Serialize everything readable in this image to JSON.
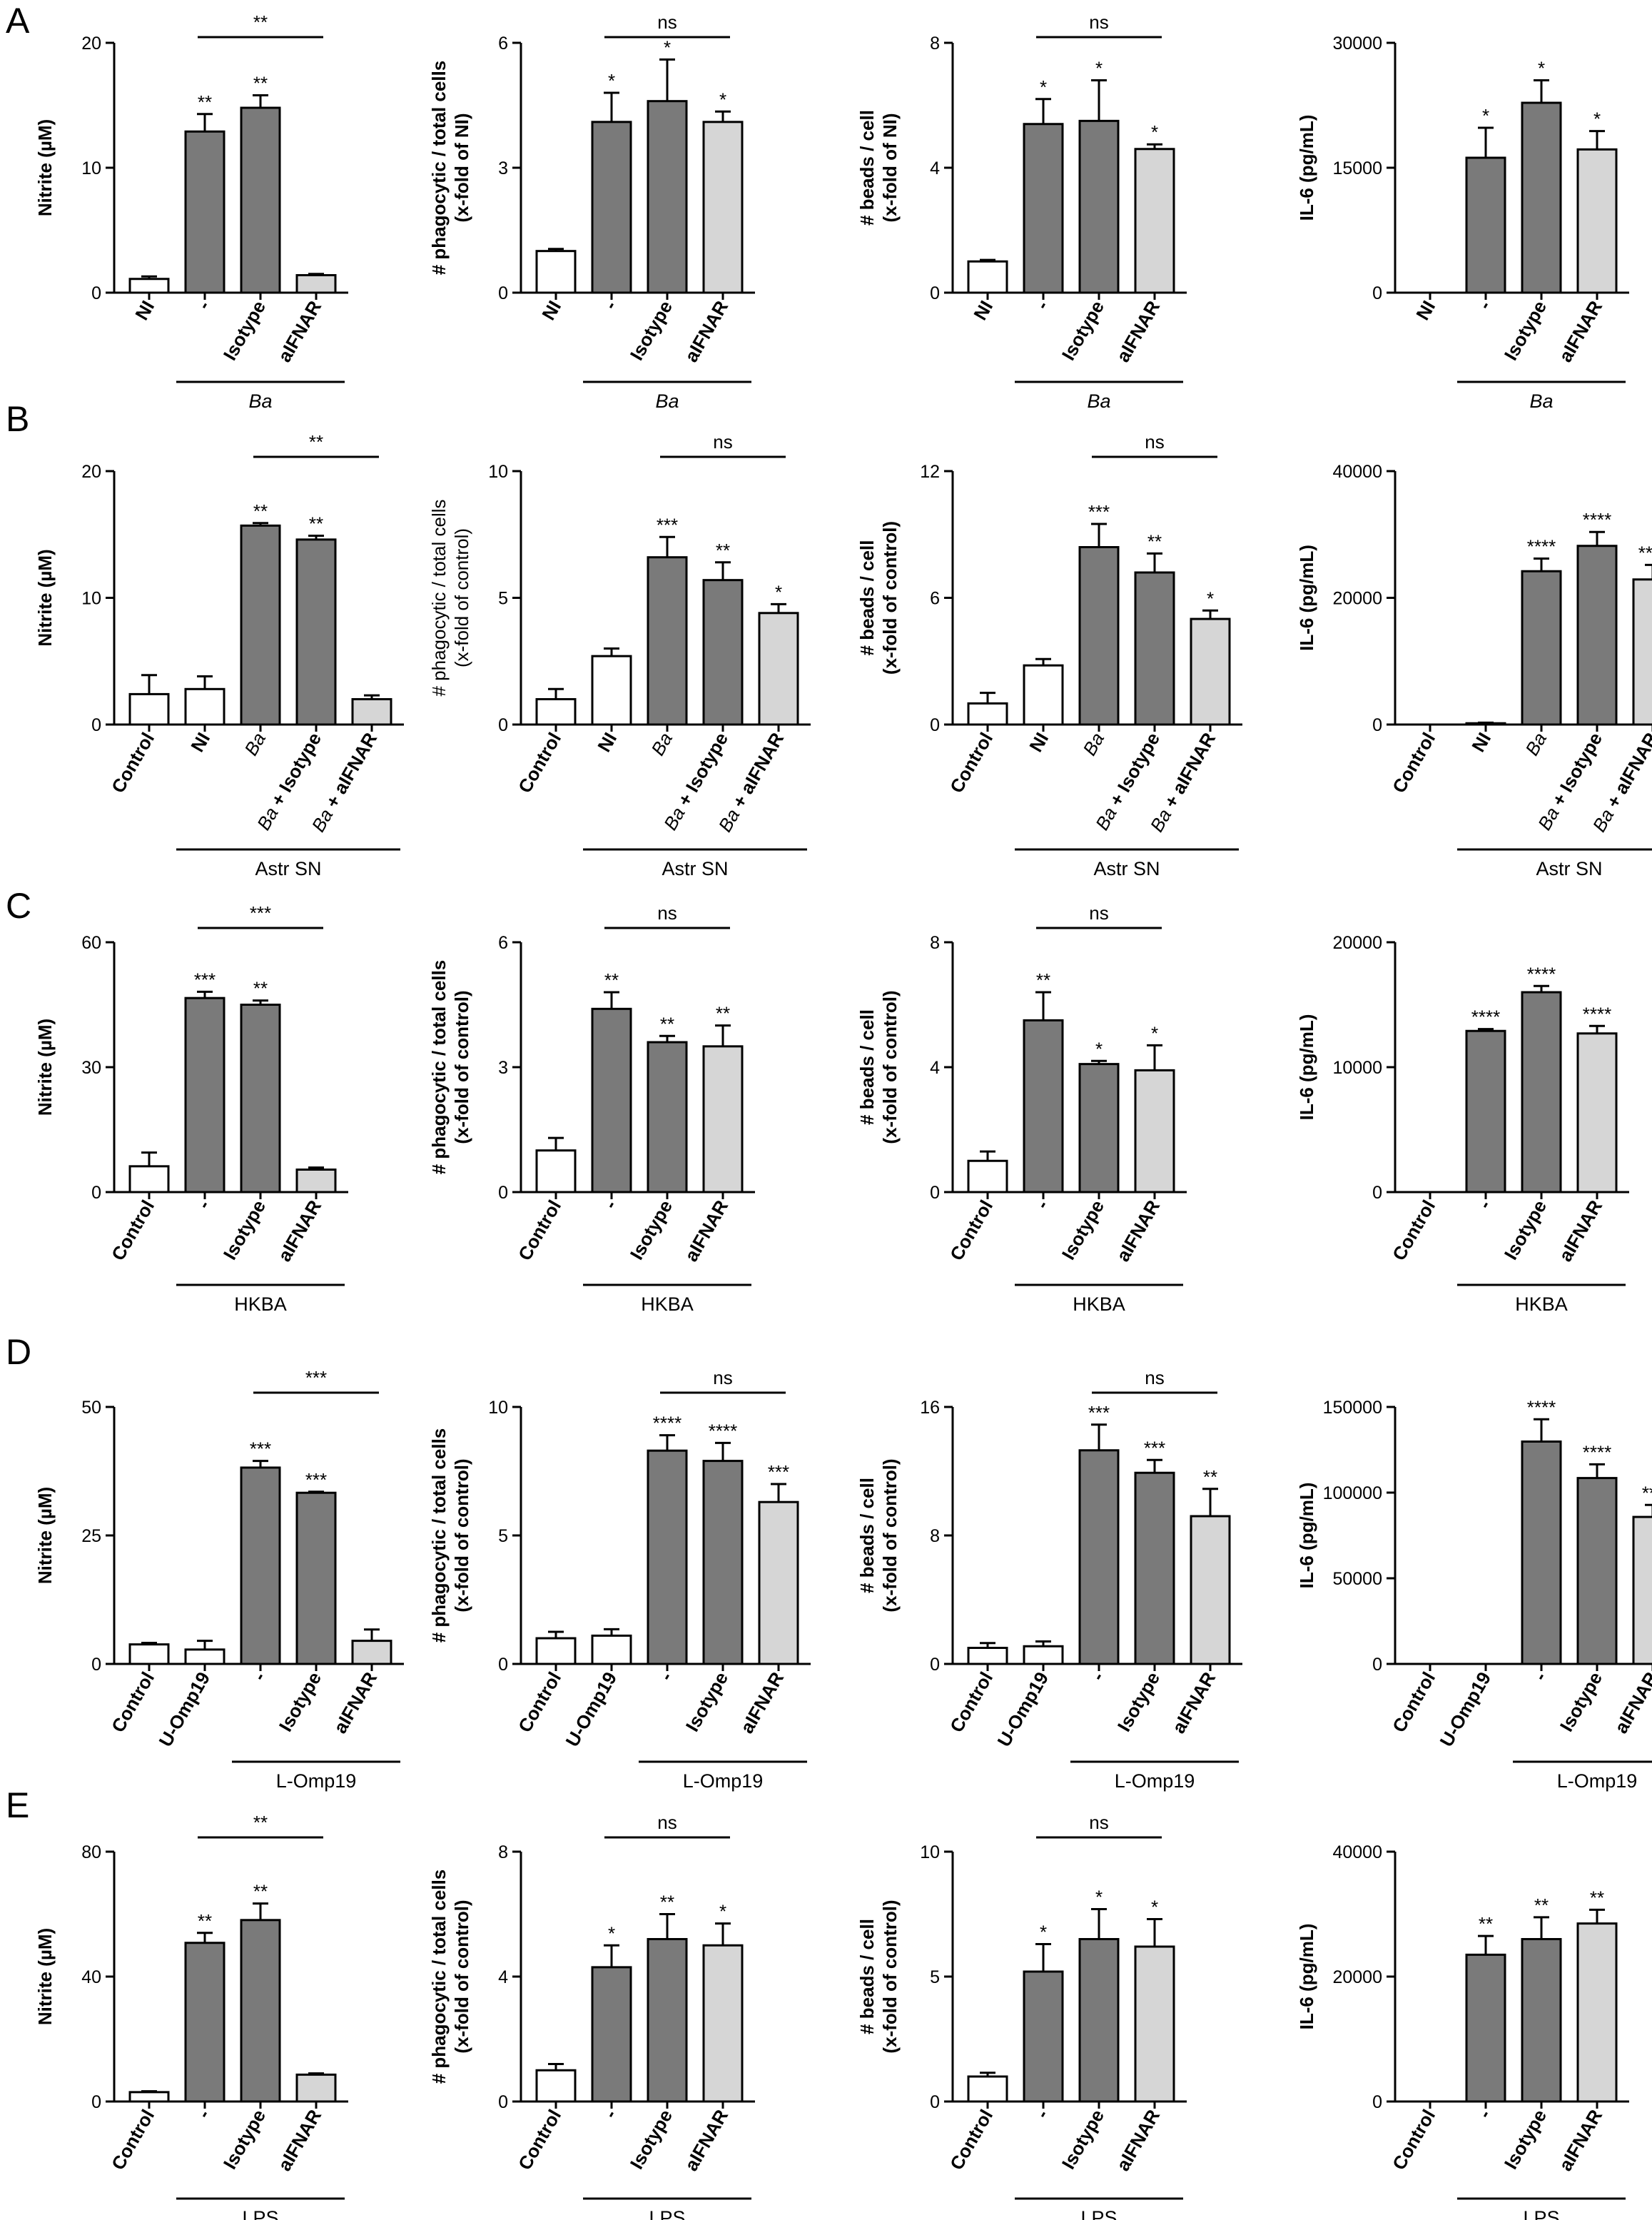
{
  "panel_letters": [
    "A",
    "B",
    "C",
    "D",
    "E"
  ],
  "colors": {
    "bar_dark": "#7a7a7a",
    "bar_light": "#d6d6d6",
    "bar_white": "#ffffff",
    "stroke": "#000000"
  },
  "chart_data": [
    {
      "panel": "A",
      "type": "bar",
      "ylabel": "Nitrite (µM)",
      "ylabel_bold": true,
      "ylim": [
        0,
        20
      ],
      "yticks": [
        "0",
        "10",
        "20"
      ],
      "categories": [
        "NI",
        "-",
        "Isotype",
        "aIFNAR"
      ],
      "italic_categories": [],
      "values": [
        1.1,
        12.9,
        14.8,
        1.4
      ],
      "errors": [
        0.2,
        1.4,
        1.0,
        0.1
      ],
      "fills": [
        "white",
        "dark",
        "dark",
        "light"
      ],
      "stars": [
        "",
        "**",
        "**",
        ""
      ],
      "compare": {
        "from": 1,
        "to": 3,
        "label": "**"
      },
      "group": {
        "from": 1,
        "to": 3,
        "label": "Ba",
        "italic": true
      }
    },
    {
      "panel": "A",
      "type": "bar",
      "ylabel": "# phagocytic / total cells\n(x-fold of NI)",
      "ylabel_bold": true,
      "ylim": [
        0,
        6
      ],
      "yticks": [
        "0",
        "3",
        "6"
      ],
      "categories": [
        "NI",
        "-",
        "Isotype",
        "aIFNAR"
      ],
      "italic_categories": [],
      "values": [
        1.0,
        4.1,
        4.6,
        4.1
      ],
      "errors": [
        0.05,
        0.7,
        1.0,
        0.25
      ],
      "fills": [
        "white",
        "dark",
        "dark",
        "light"
      ],
      "stars": [
        "",
        "*",
        "*",
        "*"
      ],
      "compare": {
        "from": 1,
        "to": 3,
        "label": "ns"
      },
      "group": {
        "from": 1,
        "to": 3,
        "label": "Ba",
        "italic": true
      }
    },
    {
      "panel": "A",
      "type": "bar",
      "ylabel": "# beads / cell\n(x-fold of NI)",
      "ylabel_bold": true,
      "ylim": [
        0,
        8
      ],
      "yticks": [
        "0",
        "4",
        "8"
      ],
      "categories": [
        "NI",
        "-",
        "Isotype",
        "aIFNAR"
      ],
      "italic_categories": [],
      "values": [
        1.0,
        5.4,
        5.5,
        4.6
      ],
      "errors": [
        0.05,
        0.8,
        1.3,
        0.15
      ],
      "fills": [
        "white",
        "dark",
        "dark",
        "light"
      ],
      "stars": [
        "",
        "*",
        "*",
        "*"
      ],
      "compare": {
        "from": 1,
        "to": 3,
        "label": "ns"
      },
      "group": {
        "from": 1,
        "to": 3,
        "label": "Ba",
        "italic": true
      }
    },
    {
      "panel": "A",
      "type": "bar",
      "ylabel": "IL-6 (pg/mL)",
      "ylabel_bold": true,
      "ylim": [
        0,
        30000
      ],
      "yticks": [
        "0",
        "15000",
        "30000"
      ],
      "categories": [
        "NI",
        "-",
        "Isotype",
        "aIFNAR"
      ],
      "italic_categories": [],
      "values": [
        0,
        16200,
        22800,
        17200
      ],
      "errors": [
        0,
        3600,
        2700,
        2200
      ],
      "fills": [
        "white",
        "dark",
        "dark",
        "light"
      ],
      "stars": [
        "",
        "*",
        "*",
        "*"
      ],
      "compare": null,
      "group": {
        "from": 1,
        "to": 3,
        "label": "Ba",
        "italic": true
      }
    },
    {
      "panel": "B",
      "type": "bar",
      "ylabel": "Nitrite (µM)",
      "ylabel_bold": true,
      "ylim": [
        0,
        20
      ],
      "yticks": [
        "0",
        "10",
        "20"
      ],
      "categories": [
        "Control",
        "NI",
        "Ba",
        "Ba + Isotype",
        "Ba + aIFNAR"
      ],
      "italic_categories": [
        "Ba"
      ],
      "values": [
        2.4,
        2.8,
        15.7,
        14.6,
        2.0
      ],
      "errors": [
        1.5,
        1.0,
        0.2,
        0.3,
        0.3
      ],
      "fills": [
        "white",
        "white",
        "dark",
        "dark",
        "light"
      ],
      "stars": [
        "",
        "",
        "**",
        "**",
        ""
      ],
      "compare": {
        "from": 2,
        "to": 4,
        "label": "**"
      },
      "group": {
        "from": 1,
        "to": 4,
        "label": "Astr SN",
        "italic": false
      }
    },
    {
      "panel": "B",
      "type": "bar",
      "ylabel": "# phagocytic / total cells\n(x-fold of control)",
      "ylabel_bold": false,
      "ylim": [
        0,
        10
      ],
      "yticks": [
        "0",
        "5",
        "10"
      ],
      "categories": [
        "Control",
        "NI",
        "Ba",
        "Ba + Isotype",
        "Ba + aIFNAR"
      ],
      "italic_categories": [
        "Ba"
      ],
      "values": [
        1.0,
        2.7,
        6.6,
        5.7,
        4.4
      ],
      "errors": [
        0.4,
        0.3,
        0.8,
        0.7,
        0.35
      ],
      "fills": [
        "white",
        "white",
        "dark",
        "dark",
        "light"
      ],
      "stars": [
        "",
        "",
        "***",
        "**",
        "*"
      ],
      "compare": {
        "from": 2,
        "to": 4,
        "label": "ns"
      },
      "group": {
        "from": 1,
        "to": 4,
        "label": "Astr SN",
        "italic": false
      }
    },
    {
      "panel": "B",
      "type": "bar",
      "ylabel": "# beads / cell\n(x-fold of control)",
      "ylabel_bold": true,
      "ylim": [
        0,
        12
      ],
      "yticks": [
        "0",
        "6",
        "12"
      ],
      "categories": [
        "Control",
        "NI",
        "Ba",
        "Ba + Isotype",
        "Ba + aIFNAR"
      ],
      "italic_categories": [
        "Ba"
      ],
      "values": [
        1.0,
        2.8,
        8.4,
        7.2,
        5.0
      ],
      "errors": [
        0.5,
        0.3,
        1.1,
        0.9,
        0.4
      ],
      "fills": [
        "white",
        "white",
        "dark",
        "dark",
        "light"
      ],
      "stars": [
        "",
        "",
        "***",
        "**",
        "*"
      ],
      "compare": {
        "from": 2,
        "to": 4,
        "label": "ns"
      },
      "group": {
        "from": 1,
        "to": 4,
        "label": "Astr SN",
        "italic": false
      }
    },
    {
      "panel": "B",
      "type": "bar",
      "ylabel": "IL-6 (pg/mL)",
      "ylabel_bold": true,
      "ylim": [
        0,
        40000
      ],
      "yticks": [
        "0",
        "20000",
        "40000"
      ],
      "categories": [
        "Control",
        "NI",
        "Ba",
        "Ba + Isotype",
        "Ba + aIFNAR"
      ],
      "italic_categories": [
        "Ba"
      ],
      "values": [
        0,
        200,
        24200,
        28200,
        22900
      ],
      "errors": [
        0,
        100,
        2000,
        2200,
        2300
      ],
      "fills": [
        "white",
        "white",
        "dark",
        "dark",
        "light"
      ],
      "stars": [
        "",
        "",
        "****",
        "****",
        "****"
      ],
      "compare": null,
      "group": {
        "from": 1,
        "to": 4,
        "label": "Astr SN",
        "italic": false
      }
    },
    {
      "panel": "C",
      "type": "bar",
      "ylabel": "Nitrite (µM)",
      "ylabel_bold": true,
      "ylim": [
        0,
        60
      ],
      "yticks": [
        "0",
        "30",
        "60"
      ],
      "categories": [
        "Control",
        "-",
        "Isotype",
        "aIFNAR"
      ],
      "italic_categories": [],
      "values": [
        6.2,
        46.6,
        45.0,
        5.4
      ],
      "errors": [
        3.3,
        1.5,
        1.0,
        0.5
      ],
      "fills": [
        "white",
        "dark",
        "dark",
        "light"
      ],
      "stars": [
        "",
        "***",
        "**",
        ""
      ],
      "compare": {
        "from": 1,
        "to": 3,
        "label": "***"
      },
      "group": {
        "from": 1,
        "to": 3,
        "label": "HKBA",
        "italic": false
      }
    },
    {
      "panel": "C",
      "type": "bar",
      "ylabel": "# phagocytic / total cells\n(x-fold of control)",
      "ylabel_bold": true,
      "ylim": [
        0,
        6
      ],
      "yticks": [
        "0",
        "3",
        "6"
      ],
      "categories": [
        "Control",
        "-",
        "Isotype",
        "aIFNAR"
      ],
      "italic_categories": [],
      "values": [
        1.0,
        4.4,
        3.6,
        3.5
      ],
      "errors": [
        0.3,
        0.4,
        0.15,
        0.5
      ],
      "fills": [
        "white",
        "dark",
        "dark",
        "light"
      ],
      "stars": [
        "",
        "**",
        "**",
        "**"
      ],
      "compare": {
        "from": 1,
        "to": 3,
        "label": "ns"
      },
      "group": {
        "from": 1,
        "to": 3,
        "label": "HKBA",
        "italic": false
      }
    },
    {
      "panel": "C",
      "type": "bar",
      "ylabel": "# beads / cell\n(x-fold of control)",
      "ylabel_bold": true,
      "ylim": [
        0,
        8
      ],
      "yticks": [
        "0",
        "4",
        "8"
      ],
      "categories": [
        "Control",
        "-",
        "Isotype",
        "aIFNAR"
      ],
      "italic_categories": [],
      "values": [
        1.0,
        5.5,
        4.1,
        3.9
      ],
      "errors": [
        0.3,
        0.9,
        0.1,
        0.8
      ],
      "fills": [
        "white",
        "dark",
        "dark",
        "light"
      ],
      "stars": [
        "",
        "**",
        "*",
        "*"
      ],
      "compare": {
        "from": 1,
        "to": 3,
        "label": "ns"
      },
      "group": {
        "from": 1,
        "to": 3,
        "label": "HKBA",
        "italic": false
      }
    },
    {
      "panel": "C",
      "type": "bar",
      "ylabel": "IL-6 (pg/mL)",
      "ylabel_bold": true,
      "ylim": [
        0,
        20000
      ],
      "yticks": [
        "0",
        "10000",
        "20000"
      ],
      "categories": [
        "Control",
        "-",
        "Isotype",
        "aIFNAR"
      ],
      "italic_categories": [],
      "values": [
        0,
        12900,
        16000,
        12700
      ],
      "errors": [
        0,
        150,
        500,
        600
      ],
      "fills": [
        "white",
        "dark",
        "dark",
        "light"
      ],
      "stars": [
        "",
        "****",
        "****",
        "****"
      ],
      "compare": null,
      "group": {
        "from": 1,
        "to": 3,
        "label": "HKBA",
        "italic": false
      }
    },
    {
      "panel": "D",
      "type": "bar",
      "ylabel": "Nitrite (µM)",
      "ylabel_bold": true,
      "ylim": [
        0,
        50
      ],
      "yticks": [
        "0",
        "25",
        "50"
      ],
      "categories": [
        "Control",
        "U-Omp19",
        "-",
        "Isotype",
        "aIFNAR"
      ],
      "italic_categories": [],
      "values": [
        3.8,
        2.8,
        38.2,
        33.3,
        4.5
      ],
      "errors": [
        0.3,
        1.7,
        1.3,
        0.2,
        2.2
      ],
      "fills": [
        "white",
        "white",
        "dark",
        "dark",
        "light"
      ],
      "stars": [
        "",
        "",
        "***",
        "***",
        ""
      ],
      "compare": {
        "from": 2,
        "to": 4,
        "label": "***"
      },
      "group": {
        "from": 2,
        "to": 4,
        "label": "L-Omp19",
        "italic": false
      }
    },
    {
      "panel": "D",
      "type": "bar",
      "ylabel": "# phagocytic / total cells\n(x-fold of control)",
      "ylabel_bold": true,
      "ylim": [
        0,
        10
      ],
      "yticks": [
        "0",
        "5",
        "10"
      ],
      "categories": [
        "Control",
        "U-Omp19",
        "-",
        "Isotype",
        "aIFNAR"
      ],
      "italic_categories": [],
      "values": [
        1.0,
        1.1,
        8.3,
        7.9,
        6.3
      ],
      "errors": [
        0.25,
        0.25,
        0.6,
        0.7,
        0.7
      ],
      "fills": [
        "white",
        "white",
        "dark",
        "dark",
        "light"
      ],
      "stars": [
        "",
        "",
        "****",
        "****",
        "***"
      ],
      "compare": {
        "from": 2,
        "to": 4,
        "label": "ns"
      },
      "group": {
        "from": 2,
        "to": 4,
        "label": "L-Omp19",
        "italic": false
      }
    },
    {
      "panel": "D",
      "type": "bar",
      "ylabel": "# beads / cell\n(x-fold of control)",
      "ylabel_bold": true,
      "ylim": [
        0,
        16
      ],
      "yticks": [
        "0",
        "8",
        "16"
      ],
      "categories": [
        "Control",
        "U-Omp19",
        "-",
        "Isotype",
        "aIFNAR"
      ],
      "italic_categories": [],
      "values": [
        1.0,
        1.1,
        13.3,
        11.9,
        9.2
      ],
      "errors": [
        0.3,
        0.3,
        1.6,
        0.8,
        1.7
      ],
      "fills": [
        "white",
        "white",
        "dark",
        "dark",
        "light"
      ],
      "stars": [
        "",
        "",
        "***",
        "***",
        "**"
      ],
      "compare": {
        "from": 2,
        "to": 4,
        "label": "ns"
      },
      "group": {
        "from": 2,
        "to": 4,
        "label": "L-Omp19",
        "italic": false
      }
    },
    {
      "panel": "D",
      "type": "bar",
      "ylabel": "IL-6 (pg/mL)",
      "ylabel_bold": true,
      "ylim": [
        0,
        150000
      ],
      "yticks": [
        "0",
        "50000",
        "100000",
        "150000"
      ],
      "categories": [
        "Control",
        "U-Omp19",
        "-",
        "Isotype",
        "aIFNAR"
      ],
      "italic_categories": [],
      "values": [
        0,
        0,
        129800,
        108500,
        85800
      ],
      "errors": [
        0,
        0,
        13000,
        8000,
        7000
      ],
      "fills": [
        "white",
        "white",
        "dark",
        "dark",
        "light"
      ],
      "stars": [
        "",
        "",
        "****",
        "****",
        "***"
      ],
      "compare": null,
      "group": {
        "from": 2,
        "to": 4,
        "label": "L-Omp19",
        "italic": false
      }
    },
    {
      "panel": "E",
      "type": "bar",
      "ylabel": "Nitrite (µM)",
      "ylabel_bold": true,
      "ylim": [
        0,
        80
      ],
      "yticks": [
        "0",
        "40",
        "80"
      ],
      "categories": [
        "Control",
        "-",
        "Isotype",
        "aIFNAR"
      ],
      "italic_categories": [],
      "values": [
        3.0,
        50.8,
        58.1,
        8.6
      ],
      "errors": [
        0.3,
        3.2,
        5.3,
        0.4
      ],
      "fills": [
        "white",
        "dark",
        "dark",
        "light"
      ],
      "stars": [
        "",
        "**",
        "**",
        ""
      ],
      "compare": {
        "from": 1,
        "to": 3,
        "label": "**"
      },
      "group": {
        "from": 1,
        "to": 3,
        "label": "LPS",
        "italic": false
      }
    },
    {
      "panel": "E",
      "type": "bar",
      "ylabel": "# phagocytic / total cells\n(x-fold of control)",
      "ylabel_bold": true,
      "ylim": [
        0,
        8
      ],
      "yticks": [
        "0",
        "4",
        "8"
      ],
      "categories": [
        "Control",
        "-",
        "Isotype",
        "aIFNAR"
      ],
      "italic_categories": [],
      "values": [
        1.0,
        4.3,
        5.2,
        5.0
      ],
      "errors": [
        0.2,
        0.7,
        0.8,
        0.7
      ],
      "fills": [
        "white",
        "dark",
        "dark",
        "light"
      ],
      "stars": [
        "",
        "*",
        "**",
        "*"
      ],
      "compare": {
        "from": 1,
        "to": 3,
        "label": "ns"
      },
      "group": {
        "from": 1,
        "to": 3,
        "label": "LPS",
        "italic": false
      }
    },
    {
      "panel": "E",
      "type": "bar",
      "ylabel": "# beads / cell\n(x-fold of control)",
      "ylabel_bold": true,
      "ylim": [
        0,
        10
      ],
      "yticks": [
        "0",
        "5",
        "10"
      ],
      "categories": [
        "Control",
        "-",
        "Isotype",
        "aIFNAR"
      ],
      "italic_categories": [],
      "values": [
        1.0,
        5.2,
        6.5,
        6.2
      ],
      "errors": [
        0.15,
        1.1,
        1.2,
        1.1
      ],
      "fills": [
        "white",
        "dark",
        "dark",
        "light"
      ],
      "stars": [
        "",
        "*",
        "*",
        "*"
      ],
      "compare": {
        "from": 1,
        "to": 3,
        "label": "ns"
      },
      "group": {
        "from": 1,
        "to": 3,
        "label": "LPS",
        "italic": false
      }
    },
    {
      "panel": "E",
      "type": "bar",
      "ylabel": "IL-6 (pg/mL)",
      "ylabel_bold": true,
      "ylim": [
        0,
        40000
      ],
      "yticks": [
        "0",
        "20000",
        "40000"
      ],
      "categories": [
        "Control",
        "-",
        "Isotype",
        "aIFNAR"
      ],
      "italic_categories": [],
      "values": [
        0,
        23500,
        26000,
        28500
      ],
      "errors": [
        0,
        3000,
        3500,
        2200
      ],
      "fills": [
        "white",
        "dark",
        "dark",
        "light"
      ],
      "stars": [
        "",
        "**",
        "**",
        "**"
      ],
      "compare": null,
      "group": {
        "from": 1,
        "to": 3,
        "label": "LPS",
        "italic": false
      }
    }
  ]
}
